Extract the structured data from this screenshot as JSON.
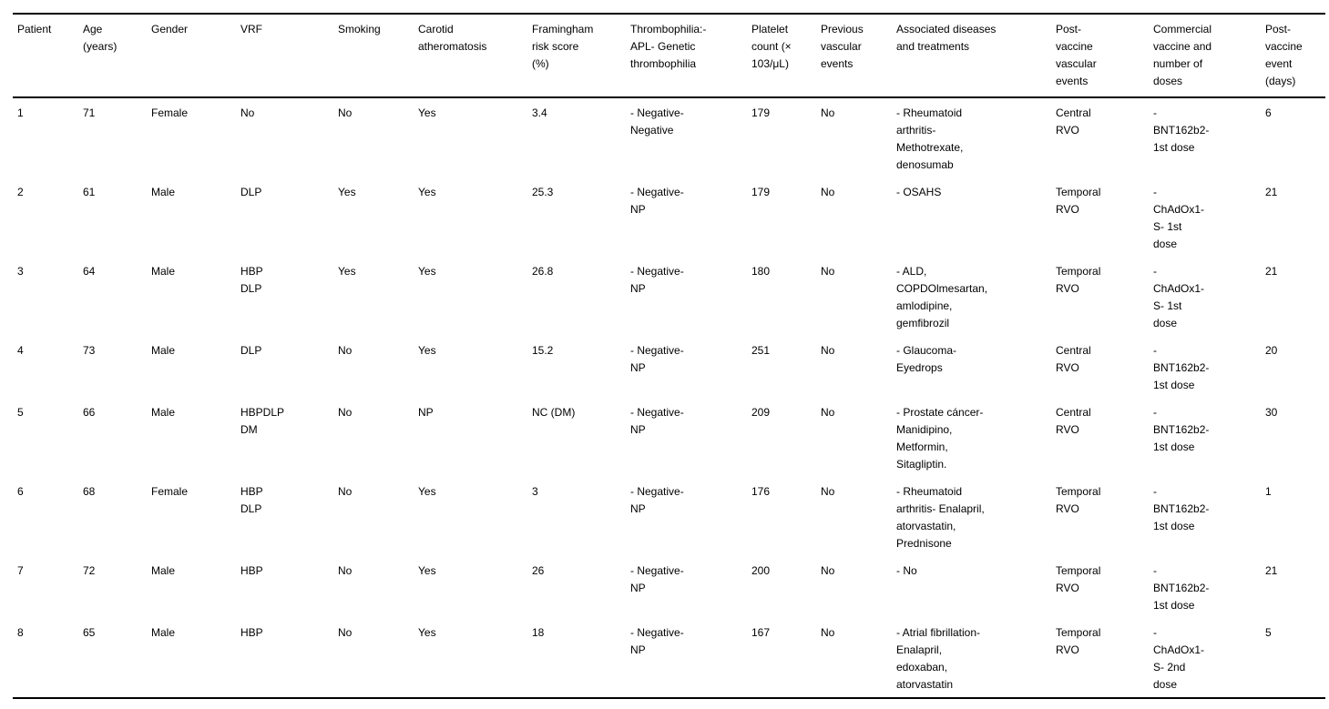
{
  "table": {
    "columns": [
      "Patient",
      "Age\n(years)",
      "Gender",
      "VRF",
      "Smoking",
      "Carotid\natheromatosis",
      "Framingham\nrisk score\n(%)",
      "Thrombophilia:-\nAPL- Genetic\nthrombophilia",
      "Platelet\ncount (×\n103/μL)",
      "Previous\nvascular\nevents",
      "Associated diseases\nand treatments",
      "Post-\nvaccine\nvascular\nevents",
      "Commercial\nvaccine and\nnumber of\ndoses",
      "Post-\nvaccine\nevent\n(days)"
    ],
    "rows": [
      [
        "1",
        "71",
        "Female",
        "No",
        "No",
        "Yes",
        "3.4",
        "- Negative-\nNegative",
        "179",
        "No",
        "- Rheumatoid\narthritis-\nMethotrexate,\ndenosumab",
        "Central\nRVO",
        "-\nBNT162b2-\n1st dose",
        "6"
      ],
      [
        "2",
        "61",
        "Male",
        "DLP",
        "Yes",
        "Yes",
        "25.3",
        "- Negative-\nNP",
        "179",
        "No",
        "- OSAHS",
        "Temporal\nRVO",
        "-\nChAdOx1-\nS- 1st\ndose",
        "21"
      ],
      [
        "3",
        "64",
        "Male",
        "HBP\nDLP",
        "Yes",
        "Yes",
        "26.8",
        "- Negative-\nNP",
        "180",
        "No",
        "- ALD,\nCOPDOlmesartan,\namlodipine,\ngemfibrozil",
        "Temporal\nRVO",
        "-\nChAdOx1-\nS- 1st\ndose",
        "21"
      ],
      [
        "4",
        "73",
        "Male",
        "DLP",
        "No",
        "Yes",
        "15.2",
        "- Negative-\nNP",
        "251",
        "No",
        "- Glaucoma-\nEyedrops",
        "Central\nRVO",
        "-\nBNT162b2-\n1st dose",
        "20"
      ],
      [
        "5",
        "66",
        "Male",
        "HBPDLP\nDM",
        "No",
        "NP",
        "NC (DM)",
        "- Negative-\nNP",
        "209",
        "No",
        "- Prostate cáncer-\nManidipino,\nMetformin,\nSitagliptin.",
        "Central\nRVO",
        "-\nBNT162b2-\n1st dose",
        "30"
      ],
      [
        "6",
        "68",
        "Female",
        "HBP\nDLP",
        "No",
        "Yes",
        "3",
        "- Negative-\nNP",
        "176",
        "No",
        "- Rheumatoid\narthritis- Enalapril,\natorvastatin,\nPrednisone",
        "Temporal\nRVO",
        "-\nBNT162b2-\n1st dose",
        "1"
      ],
      [
        "7",
        "72",
        "Male",
        "HBP",
        "No",
        "Yes",
        "26",
        "- Negative-\nNP",
        "200",
        "No",
        "- No",
        "Temporal\nRVO",
        "-\nBNT162b2-\n1st dose",
        "21"
      ],
      [
        "8",
        "65",
        "Male",
        "HBP",
        "No",
        "Yes",
        "18",
        "- Negative-\nNP",
        "167",
        "No",
        "- Atrial fibrillation-\nEnalapril,\nedoxaban,\natorvastatin",
        "Temporal\nRVO",
        "-\nChAdOx1-\nS- 2nd\ndose",
        "5"
      ]
    ]
  }
}
